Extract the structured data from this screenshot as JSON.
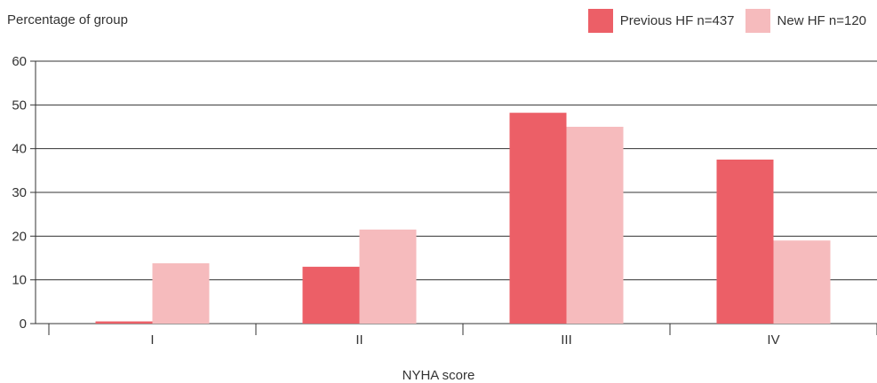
{
  "chart_data": {
    "type": "bar",
    "ylabel": "Percentage of group",
    "xlabel": "NYHA score",
    "categories": [
      "I",
      "II",
      "III",
      "IV"
    ],
    "yticks": [
      0,
      10,
      20,
      30,
      40,
      50,
      60
    ],
    "ylim": [
      0,
      60
    ],
    "grid": true,
    "legend_position": "top-right",
    "series": [
      {
        "name": "Previous HF n=437",
        "color": "#ec5f67",
        "values": [
          0.5,
          13,
          48.2,
          37.5
        ]
      },
      {
        "name": "New HF n=120",
        "color": "#f6bbbd",
        "values": [
          13.8,
          21.5,
          45,
          19
        ]
      }
    ]
  }
}
